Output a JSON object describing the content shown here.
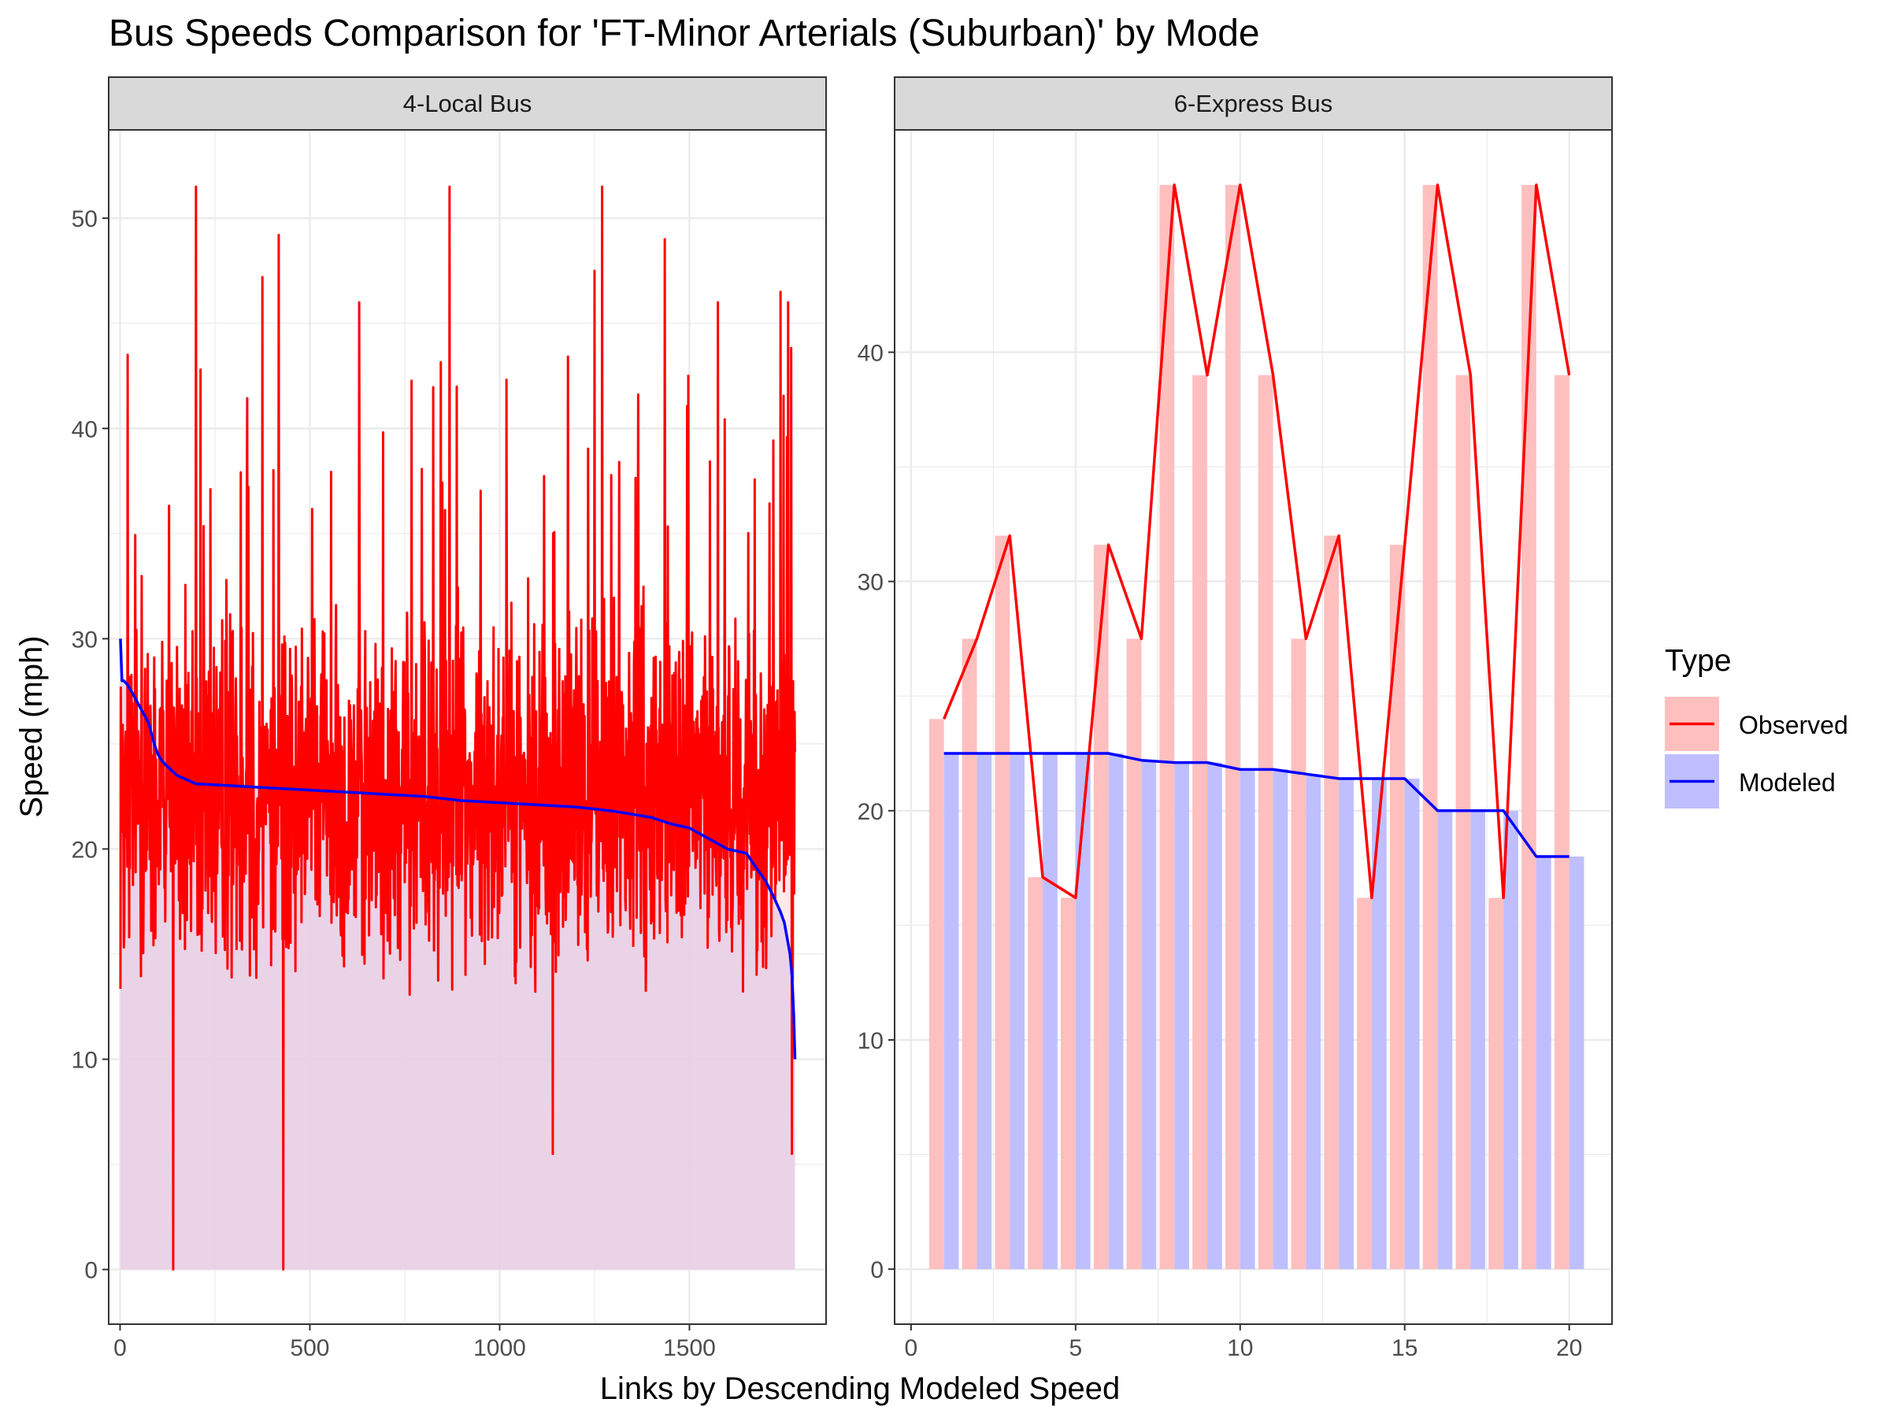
{
  "title": "Bus Speeds Comparison for 'FT-Minor Arterials (Suburban)' by Mode",
  "xlabel": "Links by Descending Modeled Speed",
  "ylabel": "Speed (mph)",
  "legend": {
    "title": "Type",
    "position": "right",
    "items": [
      {
        "label": "Observed",
        "color": "#ff0000",
        "fill": "#ffbfbf"
      },
      {
        "label": "Modeled",
        "color": "#0000ff",
        "fill": "#bfbfff"
      }
    ]
  },
  "colors": {
    "observed_line": "#ff0000",
    "modeled_line": "#0000ff",
    "observed_fill": "#ffbfbf",
    "modeled_fill": "#bfbfff",
    "overlap_fill": "#e6cfe6",
    "strip_bg": "#d9d9d9",
    "grid": "#ebebeb"
  },
  "chart_data": [
    {
      "panel": "4-Local Bus",
      "type": "line",
      "summary_type": "dense series of 1778 links (observed line + bars, modeled line + bars)",
      "n_links": 1778,
      "xlim": [
        -30,
        1860
      ],
      "ylim": [
        -2.6,
        54.2
      ],
      "x_ticks": [
        0,
        500,
        1000,
        1500
      ],
      "y_ticks": [
        0,
        10,
        20,
        30,
        40,
        50
      ],
      "modeled_curve": {
        "x": [
          1,
          5,
          10,
          20,
          30,
          45,
          60,
          75,
          90,
          100,
          110,
          120,
          150,
          200,
          300,
          400,
          500,
          600,
          700,
          800,
          900,
          1000,
          1100,
          1200,
          1300,
          1400,
          1450,
          1500,
          1550,
          1600,
          1650,
          1680,
          1700,
          1720,
          1740,
          1750,
          1760,
          1765,
          1770,
          1775,
          1778
        ],
        "y": [
          30,
          28,
          28,
          27.8,
          27.5,
          27,
          26.5,
          26,
          25,
          24.5,
          24.2,
          24,
          23.5,
          23.1,
          23.0,
          22.9,
          22.8,
          22.7,
          22.6,
          22.5,
          22.3,
          22.2,
          22.1,
          22.0,
          21.8,
          21.5,
          21.2,
          21.0,
          20.5,
          20.0,
          19.8,
          19.0,
          18.5,
          17.8,
          17.0,
          16.5,
          15.5,
          15.0,
          14.0,
          12.0,
          10.0
        ]
      },
      "observed_summary": {
        "typical_range": [
          12,
          35
        ],
        "min": 0,
        "max": 51.5,
        "notable_spikes": [
          {
            "x": 200,
            "y": 51.5
          },
          {
            "x": 868,
            "y": 51.5
          },
          {
            "x": 1270,
            "y": 51.5
          },
          {
            "x": 418,
            "y": 49.2
          },
          {
            "x": 1435,
            "y": 49.0
          },
          {
            "x": 1740,
            "y": 46.5
          },
          {
            "x": 1575,
            "y": 46.0
          },
          {
            "x": 1760,
            "y": 46.0
          },
          {
            "x": 630,
            "y": 46.0
          },
          {
            "x": 1250,
            "y": 47.5
          },
          {
            "x": 20,
            "y": 43.5
          },
          {
            "x": 375,
            "y": 47.2
          },
          {
            "x": 212,
            "y": 42.8
          },
          {
            "x": 140,
            "y": 0
          },
          {
            "x": 430,
            "y": 0
          },
          {
            "x": 1140,
            "y": 5.5
          },
          {
            "x": 1770,
            "y": 5.5
          }
        ]
      }
    },
    {
      "panel": "6-Express Bus",
      "type": "bar+line",
      "xlim": [
        -0.5,
        21.3
      ],
      "ylim": [
        -2.4,
        49.7
      ],
      "x_ticks": [
        0,
        5,
        10,
        15,
        20
      ],
      "y_ticks": [
        0,
        10,
        20,
        30,
        40
      ],
      "x": [
        1,
        2,
        3,
        4,
        5,
        6,
        7,
        8,
        9,
        10,
        11,
        12,
        13,
        14,
        15,
        16,
        17,
        18,
        19,
        20
      ],
      "series": [
        {
          "name": "Observed",
          "values": [
            24.0,
            27.5,
            32.0,
            17.1,
            16.2,
            31.6,
            27.5,
            47.3,
            39.0,
            47.3,
            39.0,
            27.5,
            32.0,
            16.2,
            31.6,
            47.3,
            39.0,
            16.2,
            47.3,
            39.0
          ]
        },
        {
          "name": "Modeled",
          "values": [
            22.5,
            22.5,
            22.5,
            22.5,
            22.5,
            22.5,
            22.2,
            22.1,
            22.1,
            21.8,
            21.8,
            21.6,
            21.4,
            21.4,
            21.4,
            20.0,
            20.0,
            20.0,
            18.0,
            18.0
          ]
        }
      ]
    }
  ]
}
